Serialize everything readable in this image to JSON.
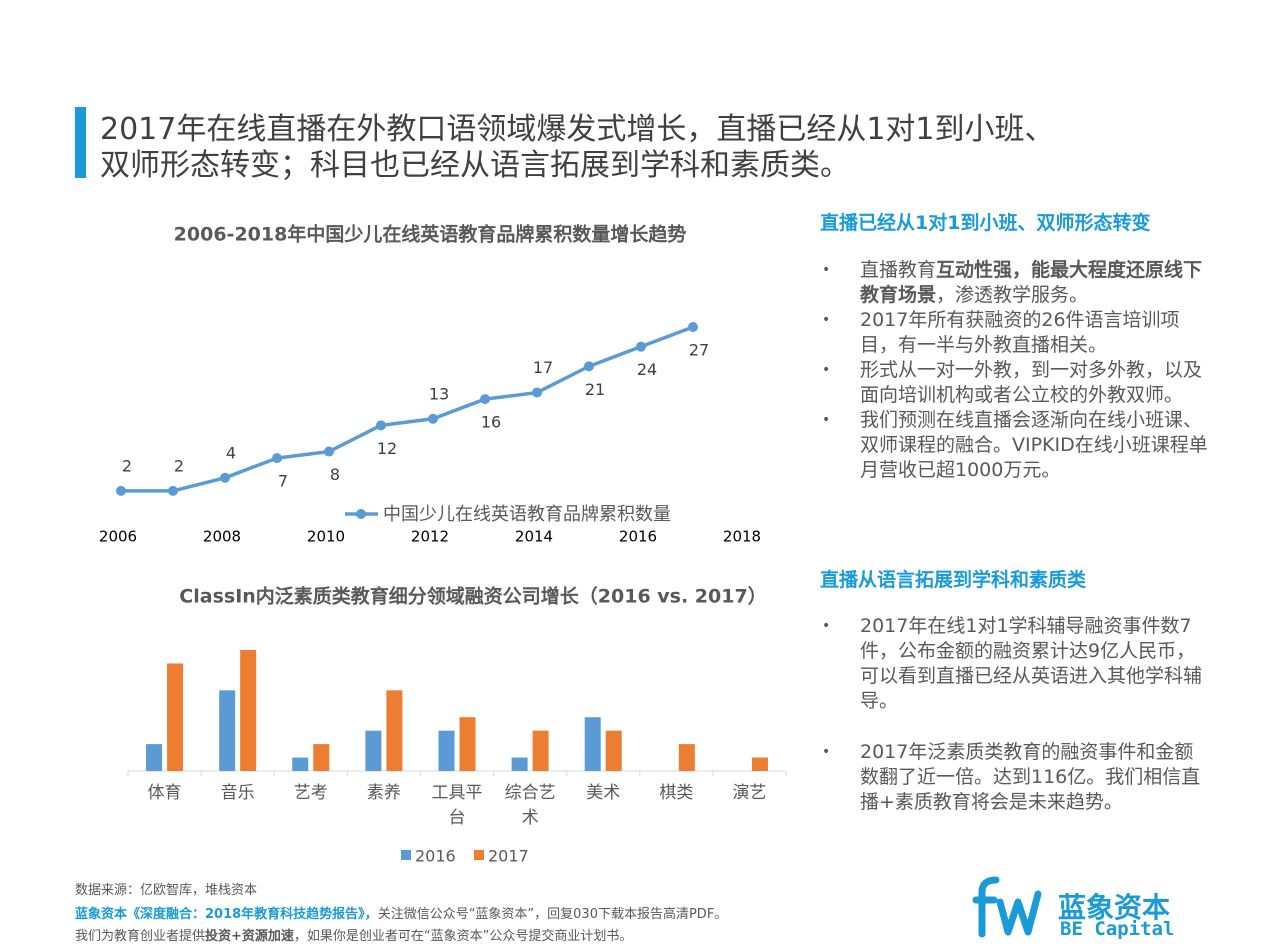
{
  "header": {
    "title_line1": "2017年在线直播在外教口语领域爆发式增长，直播已经从1对1到小班、",
    "title_line2": "双师形态转变；科目也已经从语言拓展到学科和素质类。"
  },
  "chart_data": [
    {
      "type": "line",
      "title": "2006-2018年中国少儿在线英语教育品牌累积数量增长趋势",
      "x": [
        2006,
        2007,
        2008,
        2009,
        2010,
        2011,
        2012,
        2013,
        2014,
        2015,
        2016,
        2017
      ],
      "xlim": [
        2006,
        2018
      ],
      "xticks": [
        2006,
        2008,
        2010,
        2012,
        2014,
        2016,
        2018
      ],
      "ylim": [
        0,
        27
      ],
      "series": [
        {
          "name": "中国少儿在线英语教育品牌累积数量",
          "color": "#5b9bd5",
          "values": [
            2,
            2,
            4,
            7,
            8,
            12,
            13,
            16,
            17,
            21,
            24,
            27
          ]
        }
      ]
    },
    {
      "type": "bar",
      "title": "ClassIn内泛素质类教育细分领域融资公司增长（2016 vs. 2017）",
      "categories": [
        "体育",
        "音乐",
        "艺考",
        "素养",
        "工具平台",
        "综合艺术",
        "美术",
        "棋类",
        "演艺"
      ],
      "ylim": [
        0,
        9
      ],
      "series": [
        {
          "name": "2016",
          "color": "#5b9bd5",
          "values": [
            2,
            6,
            1,
            3,
            3,
            1,
            4,
            0,
            0
          ]
        },
        {
          "name": "2017",
          "color": "#ed7d31",
          "values": [
            8,
            9,
            2,
            6,
            4,
            3,
            3,
            2,
            1
          ]
        }
      ]
    }
  ],
  "right": {
    "heading1": "直播已经从1对1到小班、双师形态转变",
    "bullet1": {
      "before": "直播教育",
      "bold": "互动性强，能最大程度还原线下教育场景",
      "after": "，渗透教学服务。"
    },
    "bullets1": [
      "2017年所有获融资的26件语言培训项目，有一半与外教直播相关。",
      "形式从一对一外教，到一对多外教，以及面向培训机构或者公立校的外教双师。",
      "我们预测在线直播会逐渐向在线小班课、双师课程的融合。VIPKID在线小班课程单月营收已超1000万元。"
    ],
    "heading2": "直播从语言拓展到学科和素质类",
    "bullets2": [
      "2017年在线1对1学科辅导融资事件数7件，公布金额的融资累计达9亿人民币，可以看到直播已经从英语进入其他学科辅导。",
      "2017年泛素质类教育的融资事件和金额数翻了近一倍。达到116亿。我们相信直播+素质教育将会是未来趋势。"
    ]
  },
  "footer": {
    "source": "数据来源：亿欧智库，堆栈资本",
    "report": "蓝象资本《深度融合：2018年教育科技趋势报告》，",
    "report_note": "关注微信公众号“蓝象资本”，回复030下载本报告高清PDF。",
    "line3_before": "我们为教育创业者提供",
    "line3_bold": "投资+资源加速",
    "line3_after": "，如果你是创业者可在“蓝象资本”公众号提交商业计划书。"
  },
  "logo": {
    "name": "蓝象资本",
    "english": "BE Capital"
  }
}
